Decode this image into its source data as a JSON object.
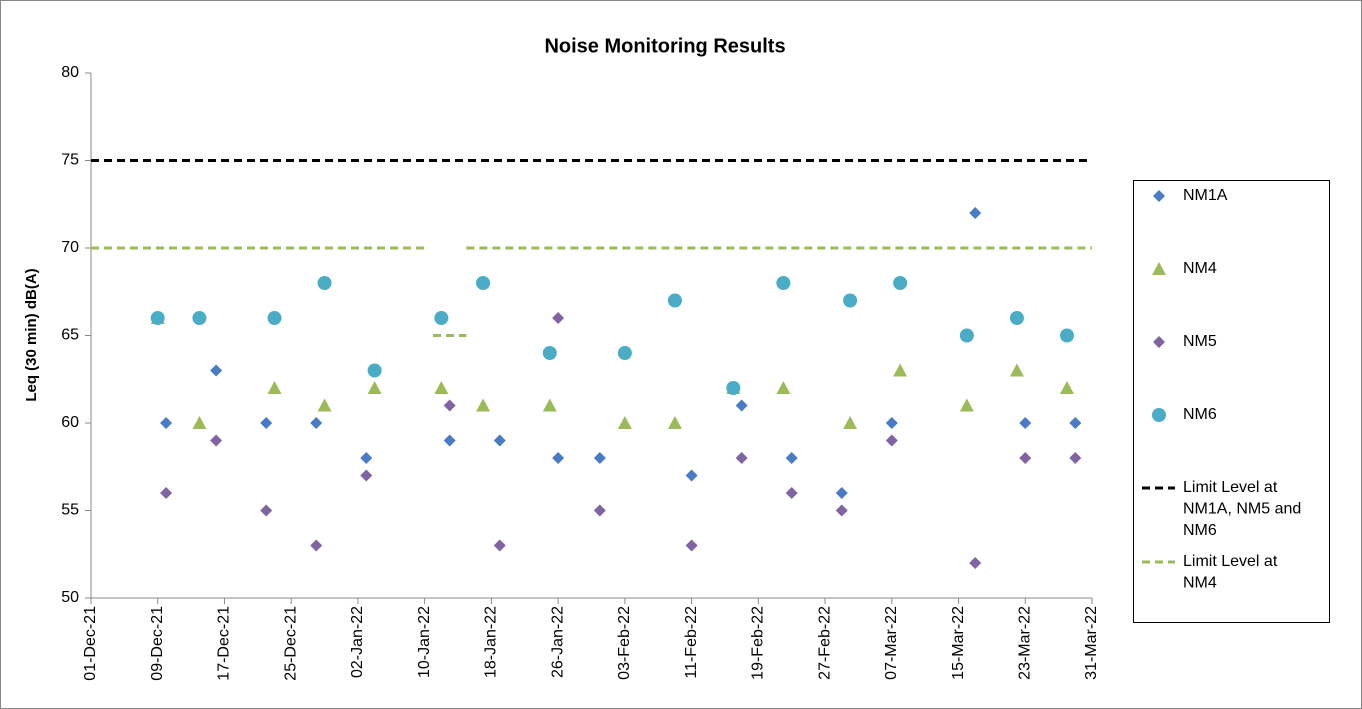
{
  "chart_data": {
    "type": "scatter",
    "title": "Noise Monitoring Results",
    "y_label": "Leq (30 min) dB(A)",
    "ylim": [
      50,
      80
    ],
    "yticks": [
      50,
      55,
      60,
      65,
      70,
      75,
      80
    ],
    "xlim": [
      "2021-12-01",
      "2022-03-31"
    ],
    "xticks": [
      {
        "value": "2021-12-01",
        "label": "01-Dec-21"
      },
      {
        "value": "2021-12-09",
        "label": "09-Dec-21"
      },
      {
        "value": "2021-12-17",
        "label": "17-Dec-21"
      },
      {
        "value": "2021-12-25",
        "label": "25-Dec-21"
      },
      {
        "value": "2022-01-02",
        "label": "02-Jan-22"
      },
      {
        "value": "2022-01-10",
        "label": "10-Jan-22"
      },
      {
        "value": "2022-01-18",
        "label": "18-Jan-22"
      },
      {
        "value": "2022-01-26",
        "label": "26-Jan-22"
      },
      {
        "value": "2022-02-03",
        "label": "03-Feb-22"
      },
      {
        "value": "2022-02-11",
        "label": "11-Feb-22"
      },
      {
        "value": "2022-02-19",
        "label": "19-Feb-22"
      },
      {
        "value": "2022-02-27",
        "label": "27-Feb-22"
      },
      {
        "value": "2022-03-07",
        "label": "07-Mar-22"
      },
      {
        "value": "2022-03-15",
        "label": "15-Mar-22"
      },
      {
        "value": "2022-03-23",
        "label": "23-Mar-22"
      },
      {
        "value": "2022-03-31",
        "label": "31-Mar-22"
      }
    ],
    "grid": false,
    "legend": "right",
    "series": [
      {
        "name": "NM1A",
        "color": "#4a7bc6",
        "marker": "diamond",
        "x": [
          "2021-12-10",
          "2021-12-16",
          "2021-12-22",
          "2021-12-28",
          "2022-01-03",
          "2022-01-13",
          "2022-01-19",
          "2022-01-26",
          "2022-01-31",
          "2022-02-11",
          "2022-02-17",
          "2022-02-23",
          "2022-03-01",
          "2022-03-07",
          "2022-03-17",
          "2022-03-23",
          "2022-03-29"
        ],
        "values": [
          60,
          63,
          60,
          60,
          58,
          59,
          59,
          58,
          58,
          57,
          61,
          58,
          56,
          60,
          72,
          60,
          60
        ]
      },
      {
        "name": "NM4",
        "color": "#9bbb59",
        "marker": "triangle",
        "x": [
          "2021-12-09",
          "2021-12-14",
          "2021-12-23",
          "2021-12-29",
          "2022-01-04",
          "2022-01-12",
          "2022-01-17",
          "2022-01-25",
          "2022-02-03",
          "2022-02-09",
          "2022-02-16",
          "2022-02-22",
          "2022-03-02",
          "2022-03-08",
          "2022-03-16",
          "2022-03-22",
          "2022-03-28"
        ],
        "values": [
          66,
          60,
          62,
          61,
          62,
          62,
          61,
          61,
          60,
          60,
          62,
          62,
          60,
          63,
          61,
          63,
          62
        ]
      },
      {
        "name": "NM5",
        "color": "#8064a2",
        "marker": "diamond",
        "x": [
          "2021-12-10",
          "2021-12-16",
          "2021-12-22",
          "2021-12-28",
          "2022-01-03",
          "2022-01-13",
          "2022-01-19",
          "2022-01-26",
          "2022-01-31",
          "2022-02-11",
          "2022-02-17",
          "2022-02-23",
          "2022-03-01",
          "2022-03-07",
          "2022-03-17",
          "2022-03-23",
          "2022-03-29"
        ],
        "values": [
          56,
          59,
          55,
          53,
          57,
          61,
          53,
          66,
          55,
          53,
          58,
          56,
          55,
          59,
          52,
          58,
          58
        ]
      },
      {
        "name": "NM6",
        "color": "#4bacc6",
        "marker": "circle",
        "x": [
          "2021-12-09",
          "2021-12-14",
          "2021-12-23",
          "2021-12-29",
          "2022-01-04",
          "2022-01-12",
          "2022-01-17",
          "2022-01-25",
          "2022-02-03",
          "2022-02-09",
          "2022-02-16",
          "2022-02-22",
          "2022-03-02",
          "2022-03-08",
          "2022-03-16",
          "2022-03-22",
          "2022-03-28"
        ],
        "values": [
          66,
          66,
          66,
          68,
          63,
          66,
          68,
          64,
          64,
          67,
          62,
          68,
          67,
          68,
          65,
          66,
          65
        ]
      },
      {
        "name": "Limit Level at NM1A, NM5 and NM6",
        "color": "#000000",
        "marker": "line",
        "x": [
          "2021-12-01",
          "2022-03-31"
        ],
        "values": [
          75,
          75
        ]
      },
      {
        "name": "Limit Level at NM4",
        "color": "#9bbb59",
        "marker": "line",
        "x": [
          "2021-12-01",
          "2022-01-10",
          "2022-01-11",
          "2022-01-11",
          "2022-01-15",
          "2022-01-15",
          "2022-01-15",
          "2022-03-31"
        ],
        "values": [
          70,
          70,
          null,
          65,
          65,
          null,
          70,
          70
        ]
      }
    ]
  }
}
